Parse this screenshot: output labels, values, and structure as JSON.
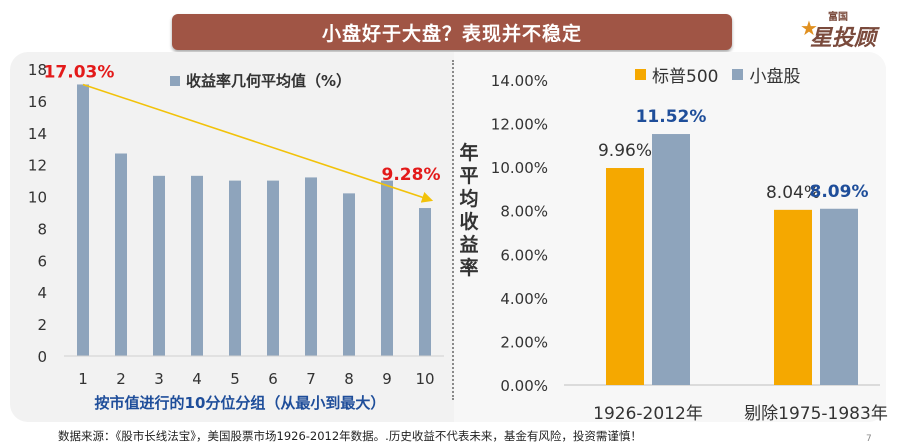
{
  "banner": {
    "title": "小盘好于大盘？表现并不稳定"
  },
  "logo": {
    "top_text": "富国",
    "main_text": "星投顾"
  },
  "footer": {
    "source": "数据来源：《股市长线法宝》，美国股票市场1926-2012年数据。.历史收益不代表未来，基金有风险，投资需谨慎！"
  },
  "page_number": "7",
  "colors": {
    "left_bar": "#8ea4bc",
    "sp500": "#f5a800",
    "small_cap": "#8ea4bc",
    "annotation": "#e31a1a",
    "trend_arrow": "#f2c20a",
    "xtitle": "#1f4e9a"
  },
  "chart_data": [
    {
      "type": "bar",
      "categories": [
        "1",
        "2",
        "3",
        "4",
        "5",
        "6",
        "7",
        "8",
        "9",
        "10"
      ],
      "series": [
        {
          "name": "收益率几何平均值（%）",
          "values": [
            17.03,
            12.7,
            11.3,
            11.3,
            11.0,
            11.0,
            11.2,
            10.2,
            11.0,
            9.28
          ]
        }
      ],
      "ylim": [
        0,
        18
      ],
      "yticks": [
        "0",
        "2",
        "4",
        "6",
        "8",
        "10",
        "12",
        "14",
        "16",
        "18"
      ],
      "xlabel": "按市值进行的10分位分组（从最小到最大）",
      "annotations": [
        {
          "category": "1",
          "text": "17.03%"
        },
        {
          "category": "10",
          "text": "9.28%"
        }
      ],
      "trend_arrow": {
        "from_category": "1",
        "from_value": 17.03,
        "to_category": "10",
        "to_value": 9.9
      },
      "legend": "top"
    },
    {
      "type": "bar",
      "categories": [
        "1926-2012年",
        "剔除1975-1983年"
      ],
      "series": [
        {
          "name": "标普500",
          "values": [
            9.96,
            8.04
          ],
          "labels": [
            "9.96%",
            "8.04%"
          ]
        },
        {
          "name": "小盘股",
          "values": [
            11.52,
            8.09
          ],
          "labels": [
            "11.52%",
            "8.09%"
          ]
        }
      ],
      "ylim": [
        0,
        14
      ],
      "yticks": [
        "0.00%",
        "2.00%",
        "4.00%",
        "6.00%",
        "8.00%",
        "10.00%",
        "12.00%",
        "14.00%"
      ],
      "ylabel": "年平均收益率",
      "legend": "top"
    }
  ]
}
